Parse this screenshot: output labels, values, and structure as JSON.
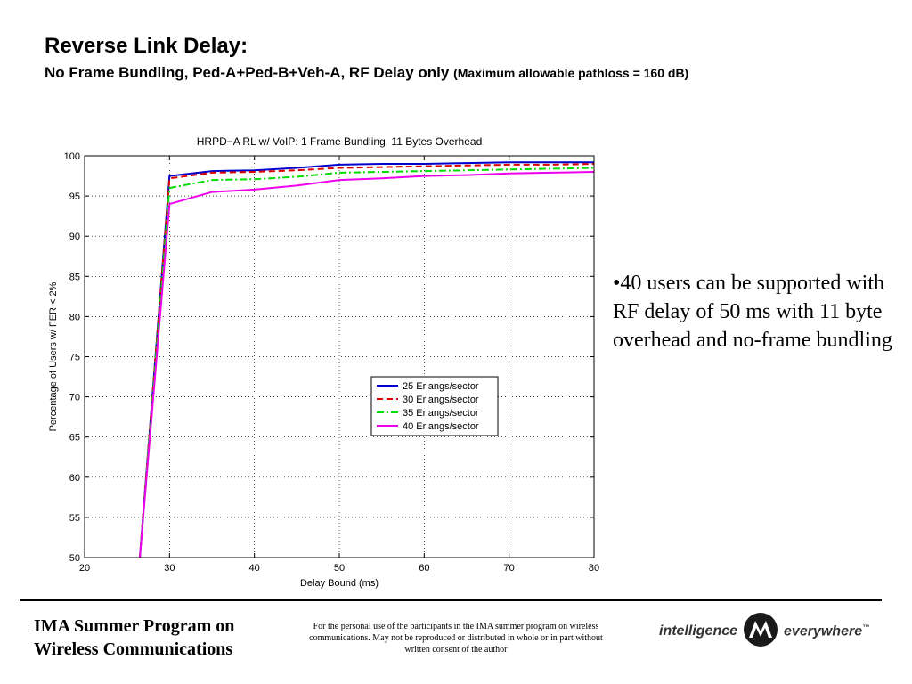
{
  "slide": {
    "title": "Reverse Link Delay:",
    "subtitle_main": "No Frame Bundling, Ped-A+Ped-B+Veh-A, RF Delay only",
    "subtitle_note": "(Maximum allowable pathloss = 160 dB)"
  },
  "bullet": {
    "text": "•40 users can be supported with RF delay of 50 ms with 11 byte overhead and no-frame bundling"
  },
  "footer": {
    "program_line1": "IMA Summer Program on",
    "program_line2": "Wireless Communications",
    "notice": "For the personal use of the participants in the IMA summer program on wireless communications. May not be reproduced or distributed in whole or in part without written consent of the author",
    "brand_left": "intelligence",
    "brand_right": "everywhere",
    "brand_tm": "™"
  },
  "chart_data": {
    "type": "line",
    "title": "HRPD−A RL w/ VoIP: 1 Frame Bundling, 11 Bytes Overhead",
    "xlabel": "Delay Bound (ms)",
    "ylabel": "Percentage of Users w/ FER < 2%",
    "xlim": [
      20,
      80
    ],
    "ylim": [
      50,
      100
    ],
    "xticks": [
      20,
      30,
      40,
      50,
      60,
      70,
      80
    ],
    "yticks": [
      50,
      55,
      60,
      65,
      70,
      75,
      80,
      85,
      90,
      95,
      100
    ],
    "grid": true,
    "legend_position": "lower-right",
    "series": [
      {
        "name": "25 Erlangs/sector",
        "color": "#0000cc",
        "dash": "solid",
        "x": [
          26.5,
          30,
          35,
          40,
          45,
          50,
          55,
          60,
          65,
          70,
          75,
          80
        ],
        "y": [
          50,
          97.5,
          98.1,
          98.2,
          98.5,
          98.9,
          99.0,
          99.0,
          99.1,
          99.2,
          99.2,
          99.2
        ]
      },
      {
        "name": "30 Erlangs/sector",
        "color": "#dd0000",
        "dash": "dashed",
        "x": [
          26.5,
          30,
          35,
          40,
          45,
          50,
          55,
          60,
          65,
          70,
          75,
          80
        ],
        "y": [
          50,
          97.2,
          97.9,
          98.0,
          98.2,
          98.5,
          98.6,
          98.7,
          98.8,
          98.9,
          98.9,
          99.0
        ]
      },
      {
        "name": "35 Erlangs/sector",
        "color": "#00dd00",
        "dash": "dashdot",
        "x": [
          26.5,
          30,
          35,
          40,
          45,
          50,
          55,
          60,
          65,
          70,
          75,
          80
        ],
        "y": [
          50,
          96.0,
          97.0,
          97.1,
          97.4,
          97.9,
          98.0,
          98.1,
          98.2,
          98.3,
          98.4,
          98.5
        ]
      },
      {
        "name": "40 Erlangs/sector",
        "color": "#ee00ee",
        "dash": "solid",
        "x": [
          26.5,
          30,
          35,
          40,
          45,
          50,
          55,
          60,
          65,
          70,
          75,
          80
        ],
        "y": [
          50,
          94.0,
          95.5,
          95.8,
          96.3,
          97.0,
          97.2,
          97.5,
          97.6,
          97.8,
          97.9,
          98.0
        ]
      }
    ]
  }
}
